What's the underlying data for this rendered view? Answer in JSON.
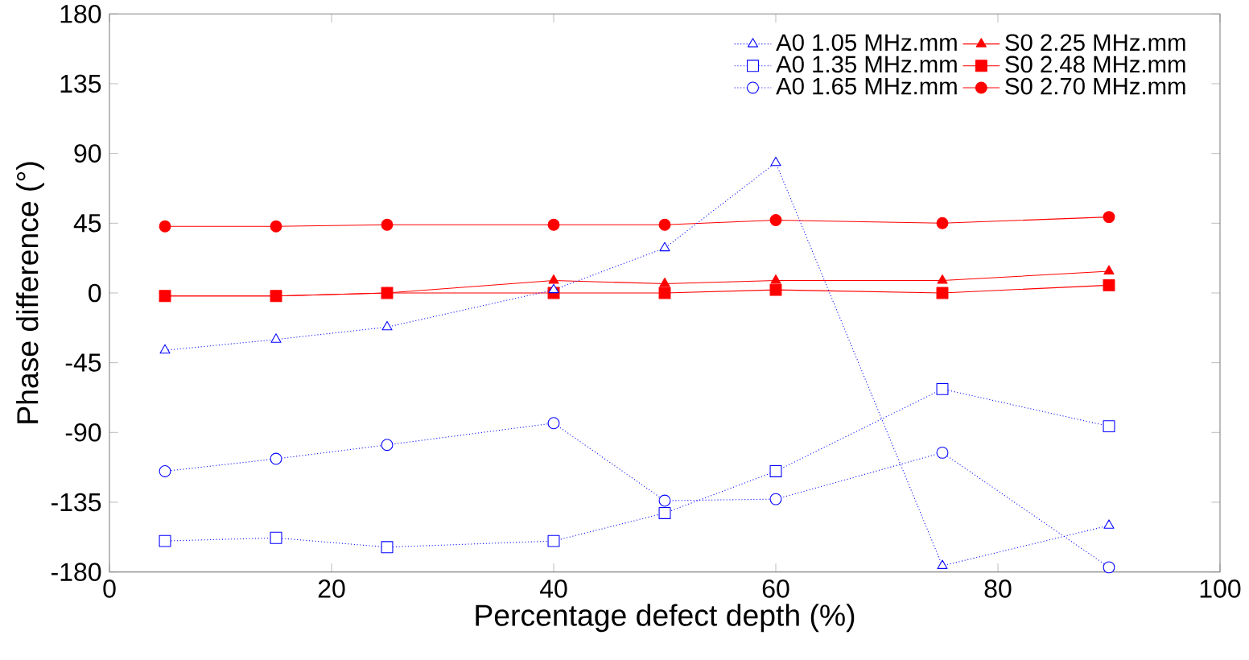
{
  "chart_data": {
    "type": "line",
    "xlabel": "Percentage defect depth (%)",
    "ylabel": "Phase difference (°)",
    "xlim": [
      0,
      100
    ],
    "xticks": [
      0,
      20,
      40,
      60,
      80,
      100
    ],
    "ylim": [
      -180,
      180
    ],
    "yticks": [
      -180,
      -135,
      -90,
      -45,
      0,
      45,
      90,
      135,
      180
    ],
    "legend": "top right",
    "series": [
      {
        "name": "A0 1.05 MHz.mm",
        "color": "#0000ff",
        "marker": "triangle",
        "line_style": "dotted",
        "x": [
          5,
          15,
          25,
          40,
          50,
          60,
          75,
          90
        ],
        "values": [
          -37,
          -30,
          -22,
          2,
          29,
          84,
          -176,
          -150
        ]
      },
      {
        "name": "A0 1.35 MHz.mm",
        "color": "#0000ff",
        "marker": "square",
        "line_style": "dotted",
        "x": [
          5,
          15,
          25,
          40,
          50,
          60,
          75,
          90
        ],
        "values": [
          -160,
          -158,
          -164,
          -160,
          -142,
          -115,
          -62,
          -86
        ]
      },
      {
        "name": "A0 1.65 MHz.mm",
        "color": "#0000ff",
        "marker": "circle",
        "line_style": "dotted",
        "x": [
          5,
          15,
          25,
          40,
          50,
          60,
          75,
          90
        ],
        "values": [
          -115,
          -107,
          -98,
          -84,
          -134,
          -133,
          -103,
          -177
        ]
      },
      {
        "name": "S0 2.25 MHz.mm",
        "color": "#ff0000",
        "marker": "triangle",
        "line_style": "solid",
        "x": [
          5,
          15,
          25,
          40,
          50,
          60,
          75,
          90
        ],
        "values": [
          -2,
          -2,
          0,
          8,
          6,
          8,
          8,
          14
        ]
      },
      {
        "name": "S0 2.48 MHz.mm",
        "color": "#ff0000",
        "marker": "square",
        "line_style": "solid",
        "x": [
          5,
          15,
          25,
          40,
          50,
          60,
          75,
          90
        ],
        "values": [
          -2,
          -2,
          0,
          0,
          0,
          2,
          0,
          5
        ]
      },
      {
        "name": "S0 2.70 MHz.mm",
        "color": "#ff0000",
        "marker": "circle",
        "line_style": "solid",
        "x": [
          5,
          15,
          25,
          40,
          50,
          60,
          75,
          90
        ],
        "values": [
          43,
          43,
          44,
          44,
          44,
          47,
          45,
          49
        ]
      }
    ]
  }
}
